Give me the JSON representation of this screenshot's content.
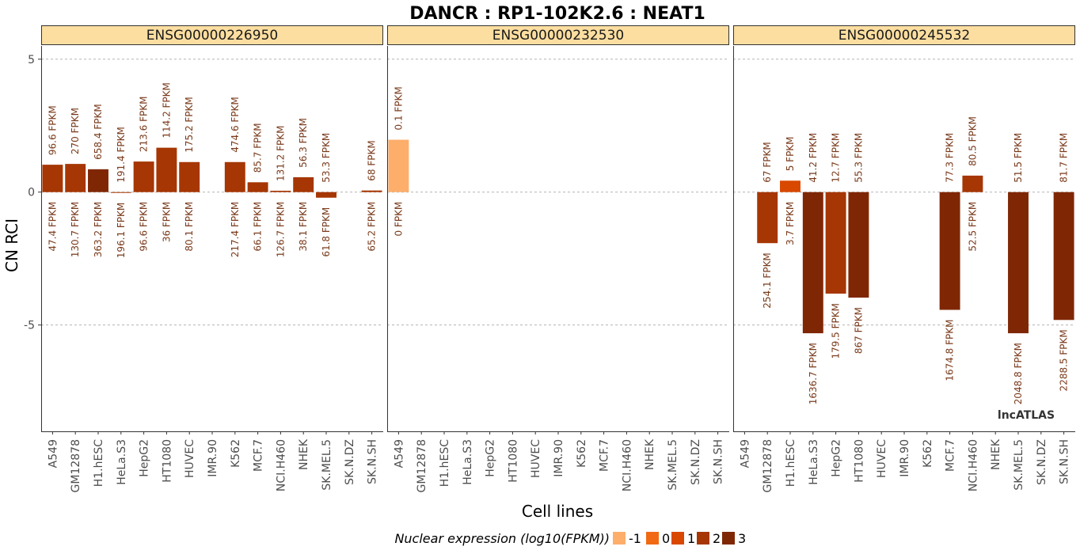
{
  "chart_data": {
    "type": "bar",
    "title": "DANCR : RP1-102K2.6 : NEAT1",
    "xlabel": "Cell lines",
    "ylabel": "CN RCI",
    "ylim": [
      -9,
      5.5
    ],
    "yticks": [
      {
        "value": 5,
        "label": "5"
      },
      {
        "value": 0,
        "label": "0"
      },
      {
        "value": -5,
        "label": "-5"
      }
    ],
    "grid": true,
    "categories": [
      "A549",
      "GM12878",
      "H1.hESC",
      "HeLa.S3",
      "HepG2",
      "HT1080",
      "HUVEC",
      "IMR.90",
      "K562",
      "MCF.7",
      "NCI.H460",
      "NHEK",
      "SK.MEL.5",
      "SK.N.DZ",
      "SK.N.SH"
    ],
    "legend": {
      "title": "Nuclear expression (log10(FPKM))",
      "position": "bottom",
      "items": [
        {
          "label": "-1",
          "value": -1,
          "color": "#fdae6b"
        },
        {
          "label": "0",
          "value": 0,
          "color": "#f16913"
        },
        {
          "label": "1",
          "value": 1,
          "color": "#d94801"
        },
        {
          "label": "2",
          "value": 2,
          "color": "#a63603"
        },
        {
          "label": "3",
          "value": 3,
          "color": "#7f2704"
        }
      ]
    },
    "watermark": "lncATLAS",
    "panels": [
      {
        "name": "ENSG00000226950",
        "bars": [
          {
            "cell": "A549",
            "value": 1.03,
            "nuclear": "47.4 FPKM",
            "cytoplasm": "96.6 FPKM",
            "log10": 1.68
          },
          {
            "cell": "GM12878",
            "value": 1.06,
            "nuclear": "130.7 FPKM",
            "cytoplasm": "270 FPKM",
            "log10": 2.12
          },
          {
            "cell": "H1.hESC",
            "value": 0.86,
            "nuclear": "363.2 FPKM",
            "cytoplasm": "658.4 FPKM",
            "log10": 2.56
          },
          {
            "cell": "HeLa.S3",
            "value": -0.03,
            "nuclear": "196.1 FPKM",
            "cytoplasm": "191.4 FPKM",
            "log10": 2.29
          },
          {
            "cell": "HepG2",
            "value": 1.15,
            "nuclear": "96.6 FPKM",
            "cytoplasm": "213.6 FPKM",
            "log10": 1.98
          },
          {
            "cell": "HT1080",
            "value": 1.67,
            "nuclear": "36 FPKM",
            "cytoplasm": "114.2 FPKM",
            "log10": 1.56
          },
          {
            "cell": "HUVEC",
            "value": 1.13,
            "nuclear": "80.1 FPKM",
            "cytoplasm": "175.2 FPKM",
            "log10": 1.9
          },
          {
            "cell": "IMR.90",
            "value": null
          },
          {
            "cell": "K562",
            "value": 1.13,
            "nuclear": "217.4 FPKM",
            "cytoplasm": "474.6 FPKM",
            "log10": 2.34
          },
          {
            "cell": "MCF.7",
            "value": 0.37,
            "nuclear": "66.1 FPKM",
            "cytoplasm": "85.7 FPKM",
            "log10": 1.82
          },
          {
            "cell": "NCI.H460",
            "value": 0.05,
            "nuclear": "126.7 FPKM",
            "cytoplasm": "131.2 FPKM",
            "log10": 2.1
          },
          {
            "cell": "NHEK",
            "value": 0.56,
            "nuclear": "38.1 FPKM",
            "cytoplasm": "56.3 FPKM",
            "log10": 1.58
          },
          {
            "cell": "SK.MEL.5",
            "value": -0.21,
            "nuclear": "61.8 FPKM",
            "cytoplasm": "53.3 FPKM",
            "log10": 1.79
          },
          {
            "cell": "SK.N.DZ",
            "value": null
          },
          {
            "cell": "SK.N.SH",
            "value": 0.06,
            "nuclear": "65.2 FPKM",
            "cytoplasm": "68 FPKM",
            "log10": 1.81
          }
        ]
      },
      {
        "name": "ENSG00000232530",
        "bars": [
          {
            "cell": "A549",
            "value": 1.97,
            "nuclear": "0 FPKM",
            "cytoplasm": "0.1 FPKM",
            "log10": -1
          },
          {
            "cell": "GM12878",
            "value": null
          },
          {
            "cell": "H1.hESC",
            "value": null
          },
          {
            "cell": "HeLa.S3",
            "value": null
          },
          {
            "cell": "HepG2",
            "value": null
          },
          {
            "cell": "HT1080",
            "value": null
          },
          {
            "cell": "HUVEC",
            "value": null
          },
          {
            "cell": "IMR.90",
            "value": null
          },
          {
            "cell": "K562",
            "value": null
          },
          {
            "cell": "MCF.7",
            "value": null
          },
          {
            "cell": "NCI.H460",
            "value": null
          },
          {
            "cell": "NHEK",
            "value": null
          },
          {
            "cell": "SK.MEL.5",
            "value": null
          },
          {
            "cell": "SK.N.DZ",
            "value": null
          },
          {
            "cell": "SK.N.SH",
            "value": null
          }
        ]
      },
      {
        "name": "ENSG00000245532",
        "bars": [
          {
            "cell": "A549",
            "value": null
          },
          {
            "cell": "GM12878",
            "value": -1.92,
            "nuclear": "254.1 FPKM",
            "cytoplasm": "67 FPKM",
            "log10": 2.4
          },
          {
            "cell": "H1.hESC",
            "value": 0.43,
            "nuclear": "3.7 FPKM",
            "cytoplasm": "5 FPKM",
            "log10": 0.57
          },
          {
            "cell": "HeLa.S3",
            "value": -5.31,
            "nuclear": "1636.7 FPKM",
            "cytoplasm": "41.2 FPKM",
            "log10": 3.21
          },
          {
            "cell": "HepG2",
            "value": -3.82,
            "nuclear": "179.5 FPKM",
            "cytoplasm": "12.7 FPKM",
            "log10": 2.25
          },
          {
            "cell": "HT1080",
            "value": -3.97,
            "nuclear": "867 FPKM",
            "cytoplasm": "55.3 FPKM",
            "log10": 2.94
          },
          {
            "cell": "HUVEC",
            "value": null
          },
          {
            "cell": "IMR.90",
            "value": null
          },
          {
            "cell": "K562",
            "value": null
          },
          {
            "cell": "MCF.7",
            "value": -4.43,
            "nuclear": "1674.8 FPKM",
            "cytoplasm": "77.3 FPKM",
            "log10": 3.22
          },
          {
            "cell": "NCI.H460",
            "value": 0.62,
            "nuclear": "52.5 FPKM",
            "cytoplasm": "80.5 FPKM",
            "log10": 1.72
          },
          {
            "cell": "NHEK",
            "value": null
          },
          {
            "cell": "SK.MEL.5",
            "value": -5.31,
            "nuclear": "2048.8 FPKM",
            "cytoplasm": "51.5 FPKM",
            "log10": 3.31
          },
          {
            "cell": "SK.N.DZ",
            "value": null
          },
          {
            "cell": "SK.N.SH",
            "value": -4.81,
            "nuclear": "2288.5 FPKM",
            "cytoplasm": "81.7 FPKM",
            "log10": 3.36
          }
        ]
      }
    ]
  }
}
